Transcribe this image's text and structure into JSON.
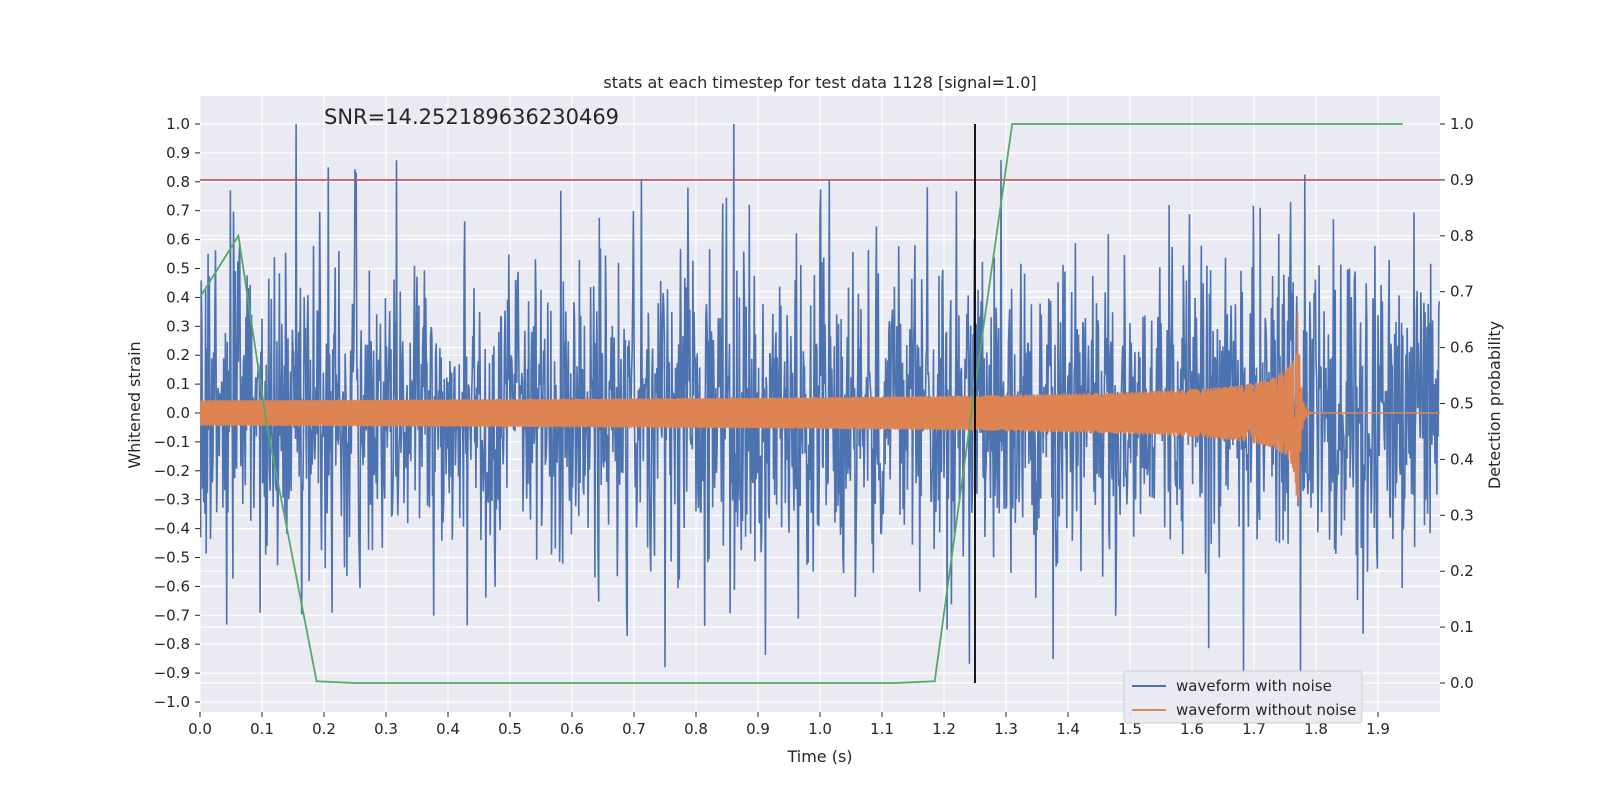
{
  "chart_data": {
    "type": "line",
    "title": "stats at each timestep for test data 1128 [signal=1.0]",
    "annotation": "SNR=14.252189636230469",
    "xlabel": "Time (s)",
    "ylabel": "Whitened strain",
    "y2label": "Detection probability",
    "xlim": [
      0.0,
      2.0
    ],
    "ylim": [
      -1.03,
      1.03
    ],
    "y2lim": [
      -0.045,
      1.045
    ],
    "x_ticks": [
      "0.0",
      "0.1",
      "0.2",
      "0.3",
      "0.4",
      "0.5",
      "0.6",
      "0.7",
      "0.8",
      "0.9",
      "1.0",
      "1.1",
      "1.2",
      "1.3",
      "1.4",
      "1.5",
      "1.6",
      "1.7",
      "1.8",
      "1.9"
    ],
    "y_ticks": [
      "1.0",
      "0.9",
      "0.8",
      "0.7",
      "0.6",
      "0.5",
      "0.4",
      "0.3",
      "0.2",
      "0.1",
      "0.0",
      "−0.1",
      "−0.2",
      "−0.3",
      "−0.4",
      "−0.5",
      "−0.6",
      "−0.7",
      "−0.8",
      "−0.9",
      "−1.0"
    ],
    "y2_ticks": [
      "1.0",
      "0.9",
      "0.8",
      "0.7",
      "0.6",
      "0.5",
      "0.4",
      "0.3",
      "0.2",
      "0.1",
      "0.0"
    ],
    "grid": true,
    "legend_position": "lower-right",
    "series": [
      {
        "name": "waveform with noise",
        "color": "#4c72b0",
        "axis": "left",
        "description": "noisy whitened strain, amplitude roughly within -0.9..1.0 across 0-2 s",
        "peaks": [
          [
            0.155,
            1.0
          ],
          [
            0.207,
            0.85
          ],
          [
            0.712,
            0.81
          ],
          [
            0.75,
            -0.88
          ],
          [
            1.775,
            -0.9
          ]
        ]
      },
      {
        "name": "waveform without noise",
        "color": "#dd8452",
        "axis": "left",
        "description": "chirp: amplitude grows from ~0.05 to ~0.52 with increasing frequency, merger near 1.77 s, then decays to 0",
        "merger_time": 1.77,
        "peak_amplitude": 0.52
      },
      {
        "axis": "right",
        "color": "#55a868",
        "x": [
          0.0,
          0.062,
          0.108,
          0.188,
          0.25,
          1.12,
          1.185,
          1.25,
          1.31,
          1.94
        ],
        "y": [
          0.69,
          0.8,
          0.46,
          0.003,
          0.0,
          0.0,
          0.003,
          0.53,
          1.0,
          1.0
        ]
      }
    ],
    "threshold_line": {
      "axis": "right",
      "value": 0.9,
      "color": "#c44e52"
    },
    "vertical_line": {
      "x": 1.25,
      "y2_from": 0.0,
      "y2_to": 1.0,
      "color": "#000000"
    }
  }
}
